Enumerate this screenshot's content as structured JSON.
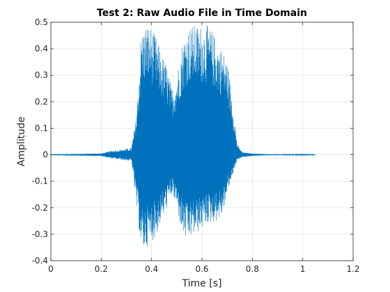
{
  "chart_data": {
    "type": "line",
    "title": "Test 2: Raw Audio File in Time Domain",
    "xlabel": "Time [s]",
    "ylabel": "Amplitude",
    "xlim": [
      0,
      1.2
    ],
    "ylim": [
      -0.4,
      0.5
    ],
    "x_ticks": [
      "0",
      "0.2",
      "0.4",
      "0.6",
      "0.8",
      "1",
      "1.2"
    ],
    "y_ticks": [
      "-0.4",
      "-0.3",
      "-0.2",
      "-0.1",
      "0",
      "0.1",
      "0.2",
      "0.3",
      "0.4",
      "0.5"
    ],
    "grid": true,
    "line_color": "#0072bd",
    "series": [
      {
        "signal_start": 0.0,
        "signal_end": 1.05,
        "envelope": {
          "time": [
            0.0,
            0.2,
            0.24,
            0.28,
            0.32,
            0.34,
            0.36,
            0.38,
            0.4,
            0.42,
            0.44,
            0.46,
            0.48,
            0.5,
            0.52,
            0.54,
            0.56,
            0.58,
            0.6,
            0.62,
            0.64,
            0.66,
            0.68,
            0.7,
            0.72,
            0.74,
            0.76,
            0.8,
            0.84,
            0.88,
            1.05
          ],
          "max": [
            0.002,
            0.005,
            0.015,
            0.02,
            0.025,
            0.15,
            0.47,
            0.5,
            0.48,
            0.44,
            0.38,
            0.34,
            0.25,
            0.3,
            0.42,
            0.48,
            0.49,
            0.49,
            0.49,
            0.49,
            0.47,
            0.43,
            0.4,
            0.36,
            0.22,
            0.04,
            0.01,
            0.005,
            0.003,
            0.002,
            0.001
          ],
          "min": [
            -0.002,
            -0.005,
            -0.015,
            -0.02,
            -0.025,
            -0.2,
            -0.37,
            -0.35,
            -0.33,
            -0.3,
            -0.25,
            -0.2,
            -0.15,
            -0.2,
            -0.3,
            -0.33,
            -0.31,
            -0.3,
            -0.28,
            -0.26,
            -0.26,
            -0.25,
            -0.23,
            -0.15,
            -0.08,
            -0.02,
            -0.01,
            -0.005,
            -0.003,
            -0.002,
            -0.001
          ]
        }
      }
    ]
  }
}
